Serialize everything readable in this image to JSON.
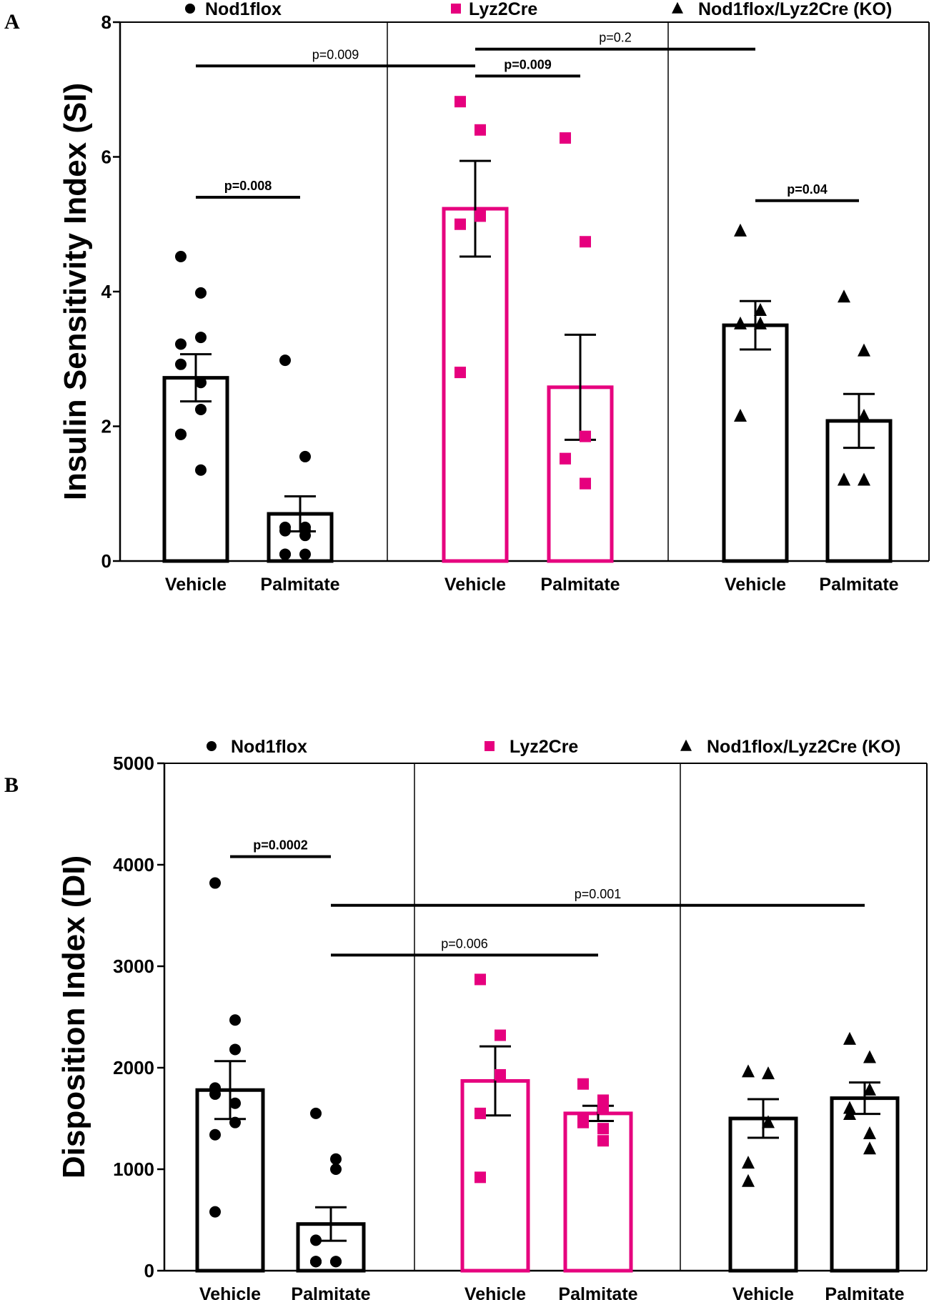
{
  "colors": {
    "black": "#000000",
    "magenta": "#e6007e",
    "magenta_light": "#ea4c9c"
  },
  "chart_data": [
    {
      "panel": "A",
      "type": "bar",
      "ylabel": "Insulin Sensitivity Index (SI)",
      "ylim": [
        0,
        8
      ],
      "yticks": [
        0,
        2,
        4,
        6,
        8
      ],
      "legend": [
        {
          "name": "Nod1flox",
          "marker": "circle",
          "color": "#000000"
        },
        {
          "name": "Lyz2Cre",
          "marker": "square",
          "color": "#e6007e"
        },
        {
          "name": "Nod1flox/Lyz2Cre (KO)",
          "marker": "triangle",
          "color": "#000000"
        }
      ],
      "groups": [
        {
          "name": "Nod1flox",
          "marker": "circle",
          "color": "#000000",
          "bars": [
            {
              "label": "Vehicle",
              "mean": 2.72,
              "sem": 0.35,
              "points": [
                4.52,
                3.98,
                3.32,
                3.22,
                2.92,
                2.65,
                2.25,
                1.88,
                1.88,
                1.35
              ]
            },
            {
              "label": "Palmitate",
              "mean": 0.7,
              "sem": 0.26,
              "points": [
                2.98,
                1.55,
                0.5,
                0.5,
                0.45,
                0.45,
                0.38,
                0.1,
                0.1,
                0.1
              ]
            }
          ]
        },
        {
          "name": "Lyz2Cre",
          "marker": "square",
          "color": "#e6007e",
          "bars": [
            {
              "label": "Vehicle",
              "mean": 5.23,
              "sem": 0.71,
              "points": [
                6.82,
                6.4,
                5.12,
                5.0,
                2.8
              ]
            },
            {
              "label": "Palmitate",
              "mean": 2.58,
              "sem": 0.78,
              "points": [
                6.28,
                4.74,
                1.85,
                1.52,
                1.52,
                1.15,
                1.15
              ]
            }
          ]
        },
        {
          "name": "Nod1flox/Lyz2Cre (KO)",
          "marker": "triangle",
          "color": "#000000",
          "bars": [
            {
              "label": "Vehicle",
              "mean": 3.5,
              "sem": 0.36,
              "points": [
                4.9,
                3.72,
                3.52,
                3.52,
                2.15
              ]
            },
            {
              "label": "Palmitate",
              "mean": 2.08,
              "sem": 0.4,
              "points": [
                3.92,
                3.12,
                2.15,
                1.2,
                1.2,
                1.2
              ]
            }
          ]
        }
      ],
      "annotations": [
        {
          "text": "p=0.008",
          "bold": true,
          "from": [
            0,
            0
          ],
          "to": [
            0,
            1
          ],
          "y": 5.4
        },
        {
          "text": "p=0.009",
          "bold": false,
          "from": [
            0,
            0
          ],
          "to": [
            1,
            0
          ],
          "y": 7.35
        },
        {
          "text": "p=0.2",
          "bold": false,
          "from": [
            1,
            0
          ],
          "to": [
            2,
            0
          ],
          "y": 7.6
        },
        {
          "text": "p=0.009",
          "bold": true,
          "from": [
            1,
            0
          ],
          "to": [
            1,
            1
          ],
          "y": 7.2
        },
        {
          "text": "p=0.04",
          "bold": true,
          "from": [
            2,
            0
          ],
          "to": [
            2,
            1
          ],
          "y": 5.35
        }
      ]
    },
    {
      "panel": "B",
      "type": "bar",
      "ylabel": "Disposition Index (DI)",
      "ylim": [
        0,
        5000
      ],
      "yticks": [
        0,
        1000,
        2000,
        3000,
        4000,
        5000
      ],
      "legend": [
        {
          "name": "Nod1flox",
          "marker": "circle",
          "color": "#000000"
        },
        {
          "name": "Lyz2Cre",
          "marker": "square",
          "color": "#e6007e"
        },
        {
          "name": "Nod1flox/Lyz2Cre (KO)",
          "marker": "triangle",
          "color": "#000000"
        }
      ],
      "groups": [
        {
          "name": "Nod1flox",
          "marker": "circle",
          "color": "#000000",
          "bars": [
            {
              "label": "Vehicle",
              "mean": 1780,
              "sem": 285,
              "points": [
                3820,
                2470,
                2180,
                1800,
                1740,
                1650,
                1460,
                1340,
                580
              ]
            },
            {
              "label": "Palmitate",
              "mean": 460,
              "sem": 165,
              "points": [
                1550,
                1100,
                1000,
                300,
                90,
                90,
                90,
                90,
                90
              ]
            }
          ]
        },
        {
          "name": "Lyz2Cre",
          "marker": "square",
          "color": "#e6007e",
          "bars": [
            {
              "label": "Vehicle",
              "mean": 1870,
              "sem": 340,
              "points": [
                2870,
                2320,
                1930,
                1550,
                920
              ]
            },
            {
              "label": "Palmitate",
              "mean": 1550,
              "sem": 75,
              "points": [
                1840,
                1680,
                1600,
                1500,
                1460,
                1400,
                1280
              ]
            }
          ]
        },
        {
          "name": "Nod1flox/Lyz2Cre (KO)",
          "marker": "triangle",
          "color": "#000000",
          "bars": [
            {
              "label": "Vehicle",
              "mean": 1500,
              "sem": 190,
              "points": [
                1960,
                1940,
                1460,
                1060,
                880
              ]
            },
            {
              "label": "Palmitate",
              "mean": 1700,
              "sem": 155,
              "points": [
                2280,
                2100,
                1780,
                1600,
                1540,
                1350,
                1200
              ]
            }
          ]
        }
      ],
      "annotations": [
        {
          "text": "p=0.0002",
          "bold": true,
          "from": [
            0,
            0
          ],
          "to": [
            0,
            1
          ],
          "y": 4080
        },
        {
          "text": "p=0.001",
          "bold": false,
          "from": [
            0,
            1
          ],
          "to": [
            2,
            1
          ],
          "y": 3600
        },
        {
          "text": "p=0.006",
          "bold": false,
          "from": [
            0,
            1
          ],
          "to": [
            1,
            1
          ],
          "y": 3110
        }
      ]
    }
  ]
}
